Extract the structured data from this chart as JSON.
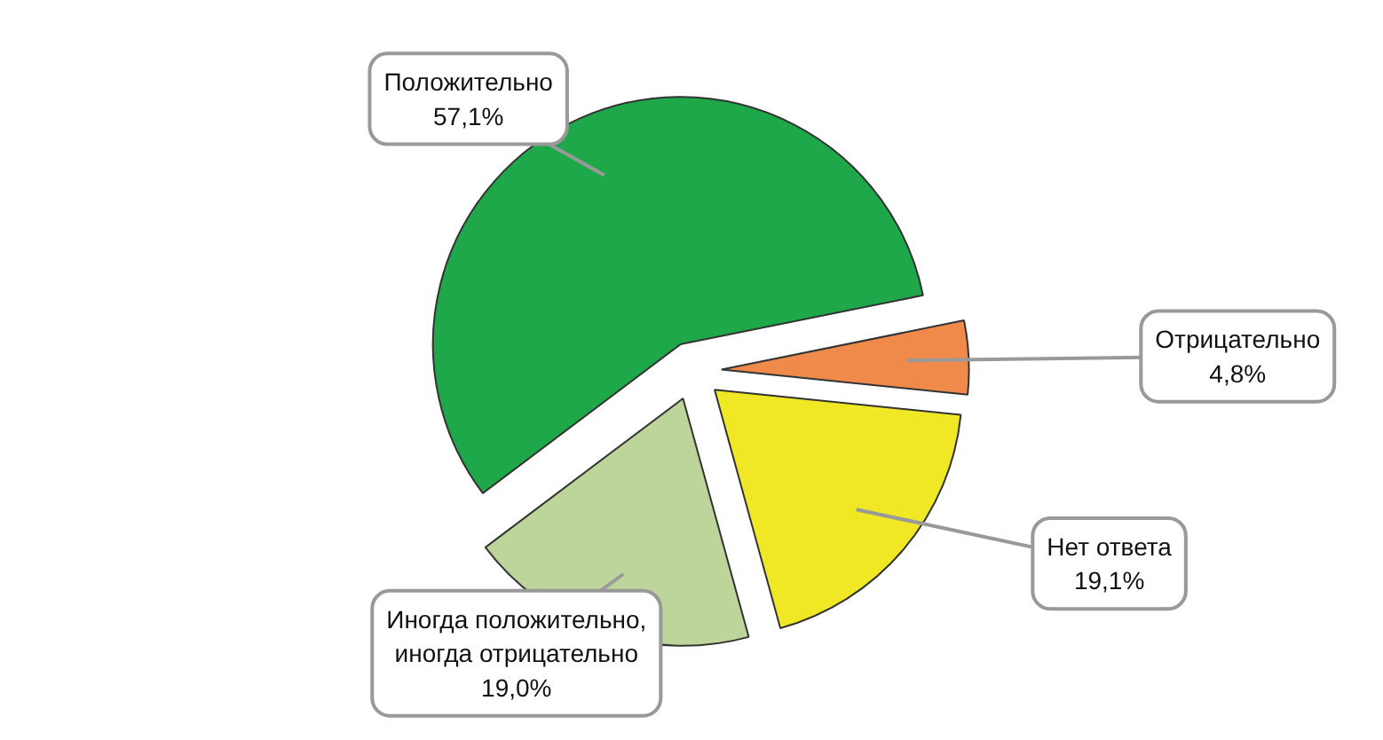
{
  "chart_data": {
    "type": "pie",
    "categories": [
      "Положительно",
      "Отрицательно",
      "Нет ответа",
      "Иногда положительно, иногда отрицательно"
    ],
    "values": [
      57.1,
      4.8,
      19.1,
      19.0
    ],
    "value_labels": [
      "57,1%",
      "4,8%",
      "19,1%",
      "19,0%"
    ],
    "colors": [
      "#1ea84a",
      "#f08a4b",
      "#f0e824",
      "#bdd49a"
    ]
  }
}
